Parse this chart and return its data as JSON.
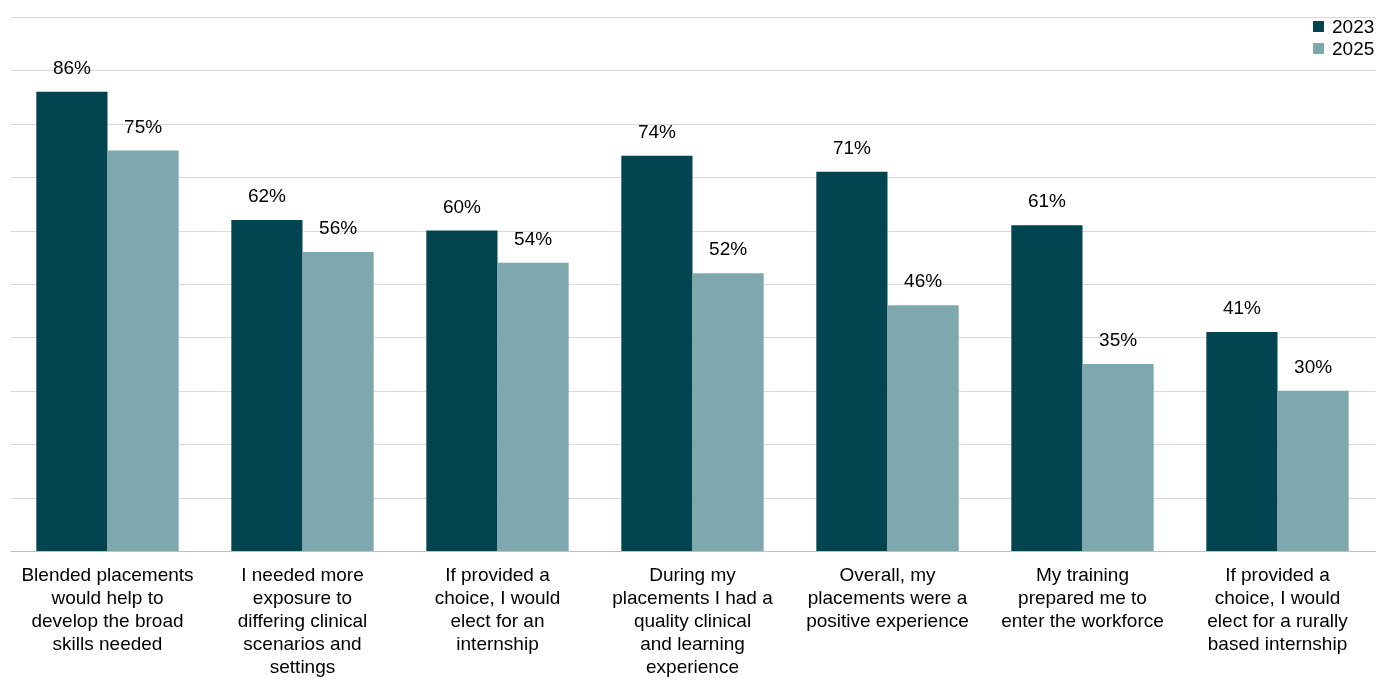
{
  "chart_data": {
    "type": "bar",
    "categories": [
      "Blended placements would help to develop the broad skills needed",
      "I needed more exposure to differing clinical scenarios and settings",
      "If provided a choice, I would elect for an internship",
      "During my placements I had a quality clinical and learning experience",
      "Overall, my placements were a positive experience",
      "My training prepared me to enter the workforce",
      "If provided a choice, I would elect for a rurally based internship"
    ],
    "series": [
      {
        "name": "2023",
        "color": "#024450",
        "values": [
          86,
          62,
          60,
          74,
          71,
          61,
          41
        ],
        "value_labels": [
          "86%",
          "62%",
          "60%",
          "74%",
          "71%",
          "61%",
          "41%"
        ]
      },
      {
        "name": "2025",
        "color": "#7ea7ae",
        "values": [
          75,
          56,
          54,
          52,
          46,
          35,
          30
        ],
        "value_labels": [
          "75%",
          "56%",
          "54%",
          "52%",
          "46%",
          "35%",
          "30%"
        ]
      }
    ],
    "ylim": [
      0,
      100
    ],
    "yticks": [
      {
        "value": 0,
        "label": null
      },
      {
        "value": 10,
        "label": null
      },
      {
        "value": 20,
        "label": null
      },
      {
        "value": 30,
        "label": null
      },
      {
        "value": 40,
        "label": null
      },
      {
        "value": 50,
        "label": null
      },
      {
        "value": 60,
        "label": null
      },
      {
        "value": 70,
        "label": null
      },
      {
        "value": 80,
        "label": null
      },
      {
        "value": 90,
        "label": null
      },
      {
        "value": 100,
        "label": null
      }
    ],
    "grid": "y",
    "legend": "top right"
  }
}
